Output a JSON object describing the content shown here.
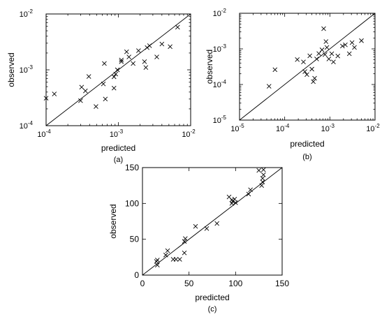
{
  "chart_data": [
    {
      "id": "a",
      "type": "scatter",
      "panel_label": "(a)",
      "xlabel": "predicted",
      "ylabel": "observed",
      "xscale": "log",
      "yscale": "log",
      "xlim": [
        0.0001,
        0.01
      ],
      "ylim": [
        0.0001,
        0.01
      ],
      "ticks": [
        {
          "value": 0.0001,
          "base": "10",
          "exp": "-4"
        },
        {
          "value": 0.001,
          "base": "10",
          "exp": "-3"
        },
        {
          "value": 0.01,
          "base": "10",
          "exp": "-2"
        }
      ],
      "reference_line": "y = x",
      "marker": "x",
      "points": [
        [
          0.0001,
          0.00031
        ],
        [
          0.00013,
          0.00037
        ],
        [
          0.0003,
          0.00028
        ],
        [
          0.00031,
          0.00049
        ],
        [
          0.00035,
          0.00042
        ],
        [
          0.00039,
          0.00076
        ],
        [
          0.00049,
          0.00022
        ],
        [
          0.00062,
          0.00056
        ],
        [
          0.00064,
          0.0013
        ],
        [
          0.00066,
          0.0003
        ],
        [
          0.00087,
          0.00075
        ],
        [
          0.00087,
          0.00047
        ],
        [
          0.00092,
          0.00084
        ],
        [
          0.00097,
          0.001
        ],
        [
          0.0011,
          0.0014
        ],
        [
          0.0011,
          0.0015
        ],
        [
          0.0013,
          0.0021
        ],
        [
          0.0014,
          0.0017
        ],
        [
          0.0016,
          0.0013
        ],
        [
          0.0019,
          0.0022
        ],
        [
          0.0023,
          0.0014
        ],
        [
          0.0024,
          0.0011
        ],
        [
          0.0025,
          0.0025
        ],
        [
          0.0027,
          0.0027
        ],
        [
          0.0034,
          0.0017
        ],
        [
          0.004,
          0.0029
        ],
        [
          0.0052,
          0.0026
        ],
        [
          0.0066,
          0.0058
        ]
      ]
    },
    {
      "id": "b",
      "type": "scatter",
      "panel_label": "(b)",
      "xlabel": "predicted",
      "ylabel": "observed",
      "xscale": "log",
      "yscale": "log",
      "xlim": [
        1e-05,
        0.01
      ],
      "ylim": [
        1e-05,
        0.01
      ],
      "ticks": [
        {
          "value": 1e-05,
          "base": "10",
          "exp": "-5"
        },
        {
          "value": 0.0001,
          "base": "10",
          "exp": "-4"
        },
        {
          "value": 0.001,
          "base": "10",
          "exp": "-3"
        },
        {
          "value": 0.01,
          "base": "10",
          "exp": "-2"
        }
      ],
      "reference_line": "y = x",
      "marker": "x",
      "points": [
        [
          4.5e-05,
          8.9e-05
        ],
        [
          6.1e-05,
          0.00026
        ],
        [
          0.00019,
          0.0005
        ],
        [
          0.00026,
          0.00043
        ],
        [
          0.00028,
          0.00023
        ],
        [
          0.00031,
          0.00019
        ],
        [
          0.00036,
          0.00064
        ],
        [
          0.0004,
          0.00027
        ],
        [
          0.00043,
          0.00012
        ],
        [
          0.00046,
          0.00015
        ],
        [
          0.00051,
          0.00052
        ],
        [
          0.00057,
          0.00074
        ],
        [
          0.00067,
          0.00094
        ],
        [
          0.00073,
          0.0037
        ],
        [
          0.00078,
          0.00069
        ],
        [
          0.00082,
          0.0016
        ],
        [
          0.00086,
          0.0011
        ],
        [
          0.00095,
          0.00052
        ],
        [
          0.0011,
          0.00073
        ],
        [
          0.0012,
          0.00043
        ],
        [
          0.0015,
          0.00063
        ],
        [
          0.0019,
          0.0012
        ],
        [
          0.0022,
          0.0013
        ],
        [
          0.0027,
          0.00073
        ],
        [
          0.0031,
          0.0015
        ],
        [
          0.0035,
          0.0011
        ],
        [
          0.005,
          0.0017
        ]
      ]
    },
    {
      "id": "c",
      "type": "scatter",
      "panel_label": "(c)",
      "xlabel": "predicted",
      "ylabel": "observed",
      "xscale": "linear",
      "yscale": "linear",
      "xlim": [
        0,
        150
      ],
      "ylim": [
        0,
        150
      ],
      "ticks": [
        {
          "value": 0,
          "label": "0"
        },
        {
          "value": 50,
          "label": "50"
        },
        {
          "value": 100,
          "label": "100"
        },
        {
          "value": 150,
          "label": "150"
        }
      ],
      "reference_line": "y = x",
      "marker": "x",
      "points": [
        [
          15,
          19
        ],
        [
          16,
          21
        ],
        [
          16,
          14
        ],
        [
          25,
          28
        ],
        [
          27,
          34
        ],
        [
          33,
          22
        ],
        [
          36,
          22
        ],
        [
          40,
          22
        ],
        [
          45,
          31
        ],
        [
          45,
          47
        ],
        [
          46,
          51
        ],
        [
          57,
          68
        ],
        [
          69,
          65
        ],
        [
          80,
          72
        ],
        [
          93,
          109
        ],
        [
          96,
          100
        ],
        [
          96,
          105
        ],
        [
          97,
          103
        ],
        [
          99,
          106
        ],
        [
          100,
          101
        ],
        [
          114,
          113
        ],
        [
          116,
          119
        ],
        [
          125,
          146
        ],
        [
          128,
          125
        ],
        [
          129,
          130
        ],
        [
          129,
          135
        ],
        [
          130,
          140
        ],
        [
          130,
          147
        ]
      ]
    }
  ]
}
